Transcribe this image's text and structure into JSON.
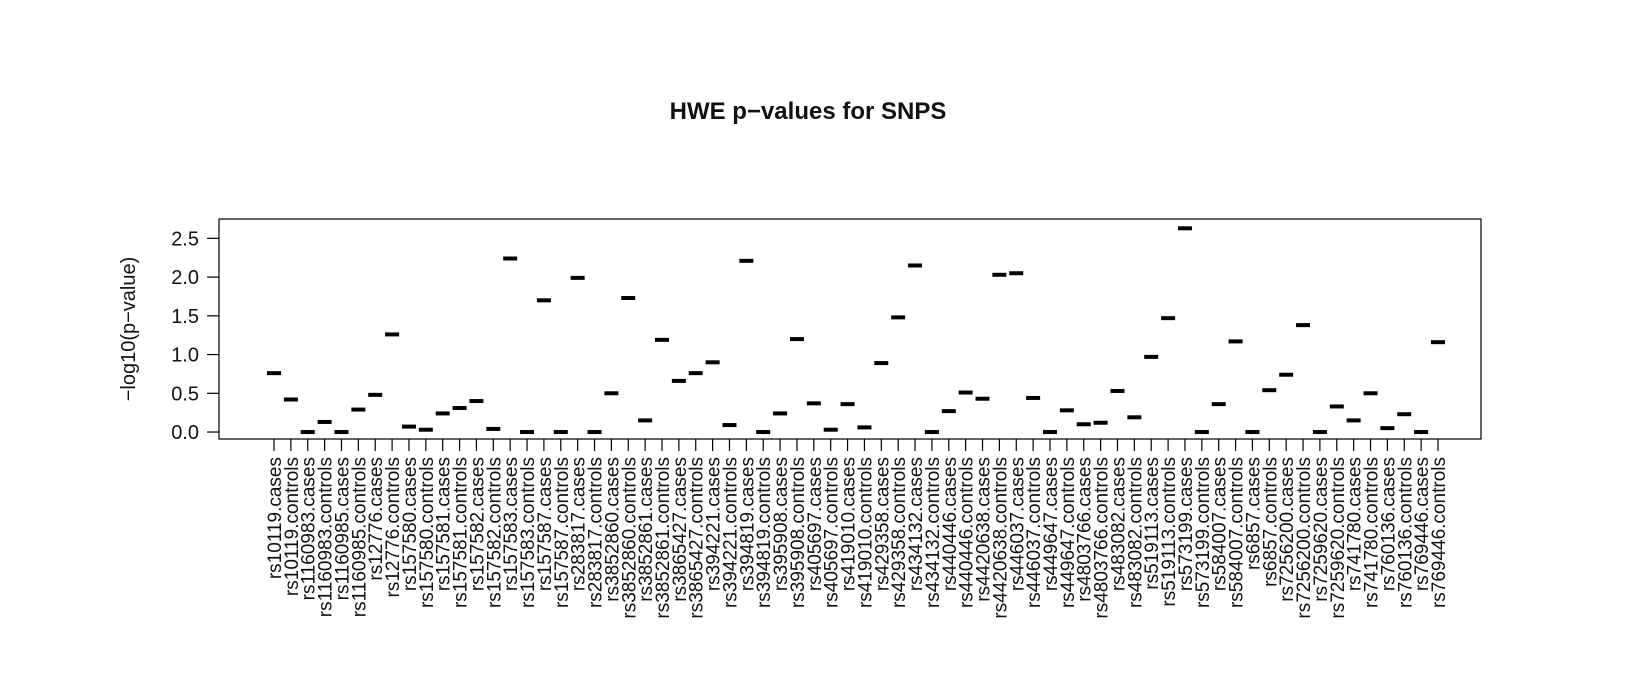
{
  "chart_data": {
    "type": "scatter",
    "title": "HWE p−values for SNPS",
    "xlabel": "",
    "ylabel": "−log10(p−value)",
    "ylim": [
      -0.09,
      2.75
    ],
    "yticks": [
      0.0,
      0.5,
      1.0,
      1.5,
      2.0,
      2.5
    ],
    "ytick_labels": [
      "0.0",
      "0.5",
      "1.0",
      "1.5",
      "2.0",
      "2.5"
    ],
    "grid": false,
    "legend": "none",
    "categories": [
      "rs10119.cases",
      "rs10119.controls",
      "rs1160983.cases",
      "rs1160983.controls",
      "rs1160985.cases",
      "rs1160985.controls",
      "rs12776.cases",
      "rs12776.controls",
      "rs157580.cases",
      "rs157580.controls",
      "rs157581.cases",
      "rs157581.controls",
      "rs157582.cases",
      "rs157582.controls",
      "rs157583.cases",
      "rs157583.controls",
      "rs157587.cases",
      "rs157587.controls",
      "rs283817.cases",
      "rs283817.controls",
      "rs3852860.cases",
      "rs3852860.controls",
      "rs3852861.cases",
      "rs3852861.controls",
      "rs3865427.cases",
      "rs3865427.controls",
      "rs394221.cases",
      "rs394221.controls",
      "rs394819.cases",
      "rs394819.controls",
      "rs395908.cases",
      "rs395908.controls",
      "rs405697.cases",
      "rs405697.controls",
      "rs419010.cases",
      "rs419010.controls",
      "rs429358.cases",
      "rs429358.controls",
      "rs434132.cases",
      "rs434132.controls",
      "rs440446.cases",
      "rs440446.controls",
      "rs4420638.cases",
      "rs4420638.controls",
      "rs446037.cases",
      "rs446037.controls",
      "rs449647.cases",
      "rs449647.controls",
      "rs4803766.cases",
      "rs4803766.controls",
      "rs483082.cases",
      "rs483082.controls",
      "rs519113.cases",
      "rs519113.controls",
      "rs573199.cases",
      "rs573199.controls",
      "rs584007.cases",
      "rs584007.controls",
      "rs6857.cases",
      "rs6857.controls",
      "rs7256200.cases",
      "rs7256200.controls",
      "rs7259620.cases",
      "rs7259620.controls",
      "rs741780.cases",
      "rs741780.controls",
      "rs760136.cases",
      "rs760136.controls",
      "rs769446.cases",
      "rs769446.controls"
    ],
    "values": [
      0.76,
      0.42,
      0.0,
      0.13,
      0.0,
      0.29,
      0.48,
      1.26,
      0.07,
      0.03,
      0.24,
      0.31,
      0.4,
      0.04,
      2.24,
      0.0,
      1.7,
      0.0,
      1.99,
      0.0,
      0.5,
      1.73,
      0.15,
      1.19,
      0.66,
      0.76,
      0.9,
      0.09,
      2.21,
      0.0,
      0.24,
      1.2,
      0.37,
      0.03,
      0.36,
      0.06,
      0.89,
      1.48,
      2.15,
      0.0,
      0.27,
      0.51,
      0.43,
      2.03,
      2.05,
      0.44,
      0.0,
      0.28,
      0.1,
      0.12,
      0.53,
      0.19,
      0.97,
      1.47,
      2.63,
      0.0,
      0.36,
      1.17,
      0.0,
      0.54,
      0.74,
      1.38,
      0.0,
      0.33,
      0.15,
      0.5,
      0.05,
      0.23,
      0.0,
      1.16
    ]
  }
}
